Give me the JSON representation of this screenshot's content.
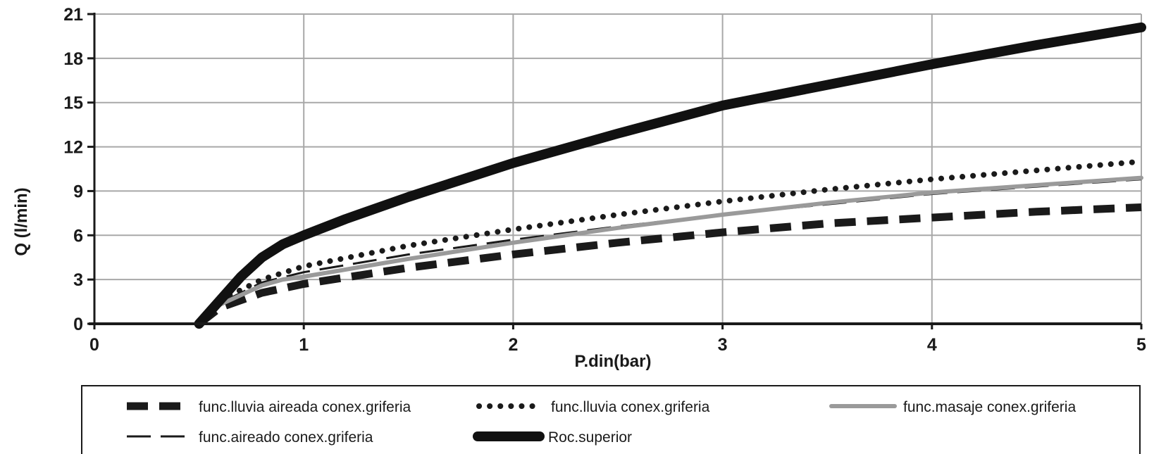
{
  "chart_data": {
    "type": "line",
    "xlabel": "P.din(bar)",
    "ylabel": "Q (l/min)",
    "xlim": [
      0,
      5
    ],
    "ylim": [
      0,
      21
    ],
    "x_ticks": [
      0,
      1,
      2,
      3,
      4,
      5
    ],
    "y_ticks": [
      0,
      3,
      6,
      9,
      12,
      15,
      18,
      21
    ],
    "grid": true,
    "legend_position": "bottom",
    "series": [
      {
        "name": "func.lluvia aireada conex.griferia",
        "style": "dashed-bold",
        "color": "#1a1a1a",
        "points": [
          [
            0.5,
            0
          ],
          [
            0.6,
            1.1
          ],
          [
            0.8,
            2.1
          ],
          [
            1.0,
            2.7
          ],
          [
            1.5,
            3.8
          ],
          [
            2.0,
            4.7
          ],
          [
            2.5,
            5.5
          ],
          [
            3.0,
            6.2
          ],
          [
            3.5,
            6.8
          ],
          [
            4.0,
            7.2
          ],
          [
            4.5,
            7.6
          ],
          [
            5.0,
            7.9
          ]
        ]
      },
      {
        "name": "func.lluvia conex.griferia",
        "style": "dotted",
        "color": "#1a1a1a",
        "points": [
          [
            0.5,
            0
          ],
          [
            0.6,
            1.6
          ],
          [
            0.8,
            3.0
          ],
          [
            1.0,
            3.9
          ],
          [
            1.5,
            5.3
          ],
          [
            2.0,
            6.4
          ],
          [
            2.5,
            7.4
          ],
          [
            3.0,
            8.3
          ],
          [
            3.5,
            9.1
          ],
          [
            4.0,
            9.8
          ],
          [
            4.5,
            10.4
          ],
          [
            5.0,
            11.0
          ]
        ]
      },
      {
        "name": "func.masaje conex.griferia",
        "style": "solid-gray",
        "color": "#9a9a9a",
        "points": [
          [
            0.5,
            0
          ],
          [
            0.6,
            1.3
          ],
          [
            0.8,
            2.6
          ],
          [
            0.9,
            3.0
          ],
          [
            1.0,
            3.2
          ],
          [
            1.5,
            4.4
          ],
          [
            2.0,
            5.5
          ],
          [
            2.5,
            6.5
          ],
          [
            3.0,
            7.4
          ],
          [
            3.5,
            8.2
          ],
          [
            4.0,
            8.9
          ],
          [
            4.5,
            9.4
          ],
          [
            5.0,
            9.9
          ]
        ]
      },
      {
        "name": "func.aireado conex.griferia",
        "style": "dashed-thin",
        "color": "#1a1a1a",
        "points": [
          [
            0.5,
            0
          ],
          [
            0.6,
            1.4
          ],
          [
            0.8,
            2.8
          ],
          [
            1.0,
            3.5
          ],
          [
            1.5,
            4.7
          ],
          [
            2.0,
            5.7
          ],
          [
            2.5,
            6.6
          ],
          [
            3.0,
            7.4
          ],
          [
            3.5,
            8.1
          ],
          [
            4.0,
            8.8
          ],
          [
            4.5,
            9.3
          ],
          [
            5.0,
            9.8
          ]
        ]
      },
      {
        "name": "Roc.superior",
        "style": "solid-heavy",
        "color": "#111111",
        "points": [
          [
            0.5,
            0
          ],
          [
            0.6,
            1.6
          ],
          [
            0.7,
            3.2
          ],
          [
            0.8,
            4.5
          ],
          [
            0.9,
            5.4
          ],
          [
            1.0,
            6.0
          ],
          [
            1.2,
            7.1
          ],
          [
            1.5,
            8.6
          ],
          [
            2.0,
            10.9
          ],
          [
            2.5,
            12.9
          ],
          [
            3.0,
            14.8
          ],
          [
            3.5,
            16.2
          ],
          [
            4.0,
            17.6
          ],
          [
            4.5,
            18.9
          ],
          [
            5.0,
            20.1
          ]
        ]
      }
    ]
  }
}
